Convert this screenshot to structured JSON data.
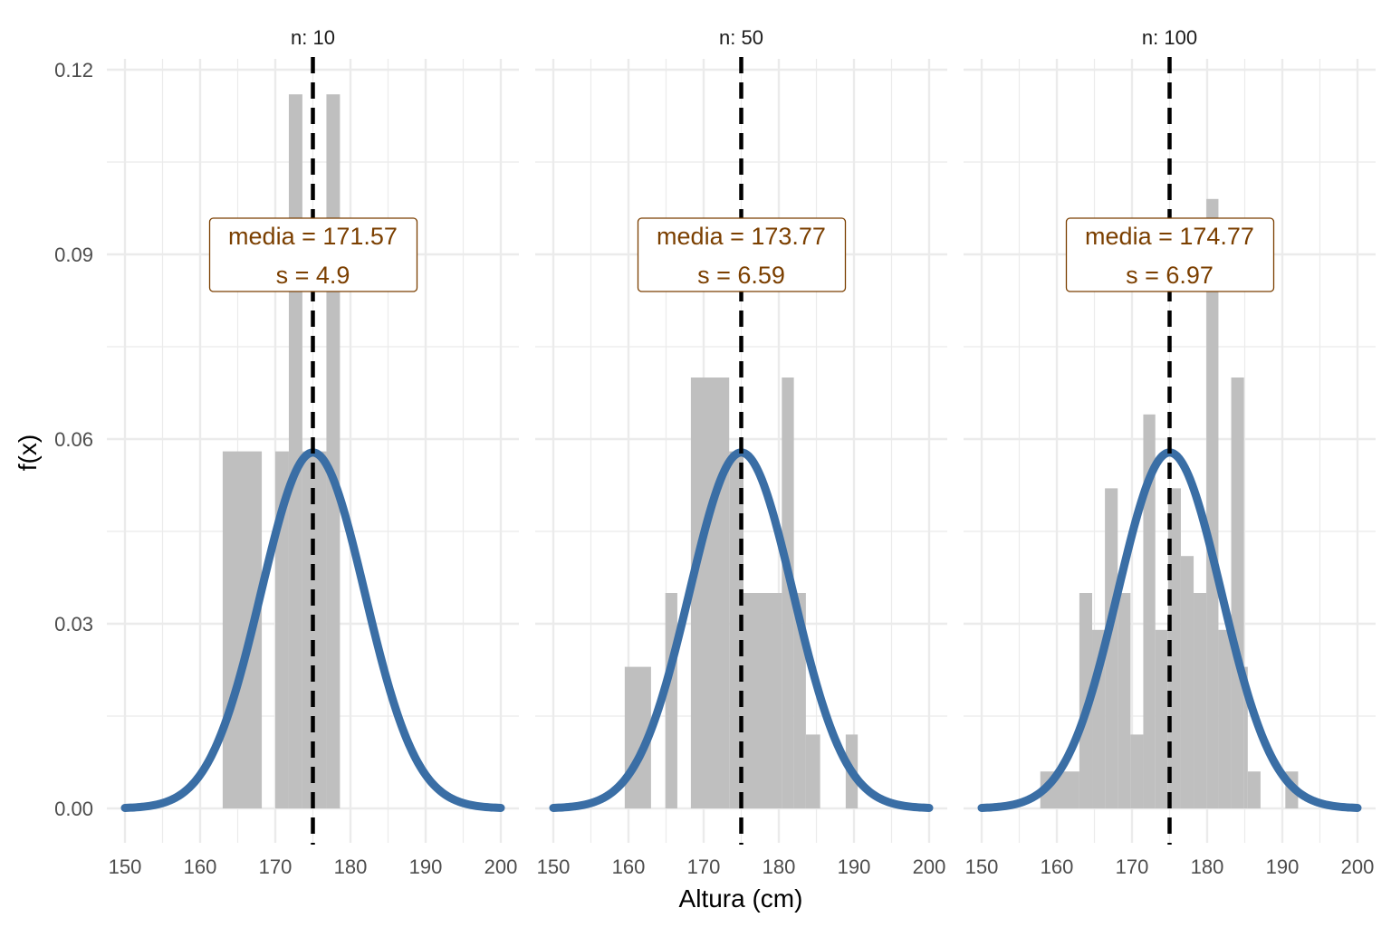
{
  "colors": {
    "bar": "#bfbfbf",
    "curve": "#3a6ea5",
    "mean_line": "#000000",
    "annotation": "#7b3f00",
    "grid": "#ebebeb"
  },
  "chart_data": {
    "type": "bar",
    "xlabel": "Altura (cm)",
    "ylabel": "f(x)",
    "xlim": [
      150,
      200
    ],
    "ylim": [
      0,
      0.12
    ],
    "x_ticks": [
      "150",
      "160",
      "170",
      "180",
      "190",
      "200"
    ],
    "y_ticks": [
      "0.00",
      "0.03",
      "0.06",
      "0.09",
      "0.12"
    ],
    "normal_curve": {
      "mean": 175,
      "sd": 6.9
    },
    "mean_line_x": 175,
    "panels": [
      {
        "strip": "n: 10",
        "annotation": {
          "line1": "media = 171.57",
          "line2": "s = 4.9"
        },
        "bins": [
          {
            "x0": 163.0,
            "x1": 168.2,
            "density": 0.058
          },
          {
            "x0": 170.0,
            "x1": 171.8,
            "density": 0.058
          },
          {
            "x0": 171.8,
            "x1": 173.6,
            "density": 0.116
          },
          {
            "x0": 173.6,
            "x1": 176.8,
            "density": 0.058
          },
          {
            "x0": 176.8,
            "x1": 178.6,
            "density": 0.116
          }
        ]
      },
      {
        "strip": "n: 50",
        "annotation": {
          "line1": "media = 173.77",
          "line2": "s = 6.59"
        },
        "bins": [
          {
            "x0": 159.5,
            "x1": 163.0,
            "density": 0.023
          },
          {
            "x0": 164.9,
            "x1": 166.5,
            "density": 0.035
          },
          {
            "x0": 168.3,
            "x1": 173.4,
            "density": 0.07
          },
          {
            "x0": 173.4,
            "x1": 175.3,
            "density": 0.058
          },
          {
            "x0": 175.3,
            "x1": 180.4,
            "density": 0.035
          },
          {
            "x0": 180.4,
            "x1": 182.0,
            "density": 0.07
          },
          {
            "x0": 182.0,
            "x1": 183.6,
            "density": 0.035
          },
          {
            "x0": 183.6,
            "x1": 185.5,
            "density": 0.012
          },
          {
            "x0": 188.9,
            "x1": 190.5,
            "density": 0.012
          }
        ]
      },
      {
        "strip": "n: 100",
        "annotation": {
          "line1": "media = 174.77",
          "line2": "s = 6.97"
        },
        "bins": [
          {
            "x0": 157.8,
            "x1": 163.0,
            "density": 0.006
          },
          {
            "x0": 163.0,
            "x1": 164.7,
            "density": 0.035
          },
          {
            "x0": 164.7,
            "x1": 166.4,
            "density": 0.029
          },
          {
            "x0": 166.4,
            "x1": 168.1,
            "density": 0.052
          },
          {
            "x0": 168.1,
            "x1": 169.8,
            "density": 0.035
          },
          {
            "x0": 169.8,
            "x1": 171.5,
            "density": 0.012
          },
          {
            "x0": 171.5,
            "x1": 173.1,
            "density": 0.064
          },
          {
            "x0": 173.1,
            "x1": 174.8,
            "density": 0.029
          },
          {
            "x0": 174.8,
            "x1": 176.5,
            "density": 0.052
          },
          {
            "x0": 176.5,
            "x1": 178.2,
            "density": 0.041
          },
          {
            "x0": 178.2,
            "x1": 179.9,
            "density": 0.035
          },
          {
            "x0": 179.9,
            "x1": 181.5,
            "density": 0.099
          },
          {
            "x0": 181.5,
            "x1": 183.2,
            "density": 0.029
          },
          {
            "x0": 183.2,
            "x1": 184.9,
            "density": 0.07
          },
          {
            "x0": 184.9,
            "x1": 185.4,
            "density": 0.023
          },
          {
            "x0": 185.4,
            "x1": 187.1,
            "density": 0.006
          },
          {
            "x0": 190.4,
            "x1": 192.1,
            "density": 0.006
          }
        ]
      }
    ]
  }
}
